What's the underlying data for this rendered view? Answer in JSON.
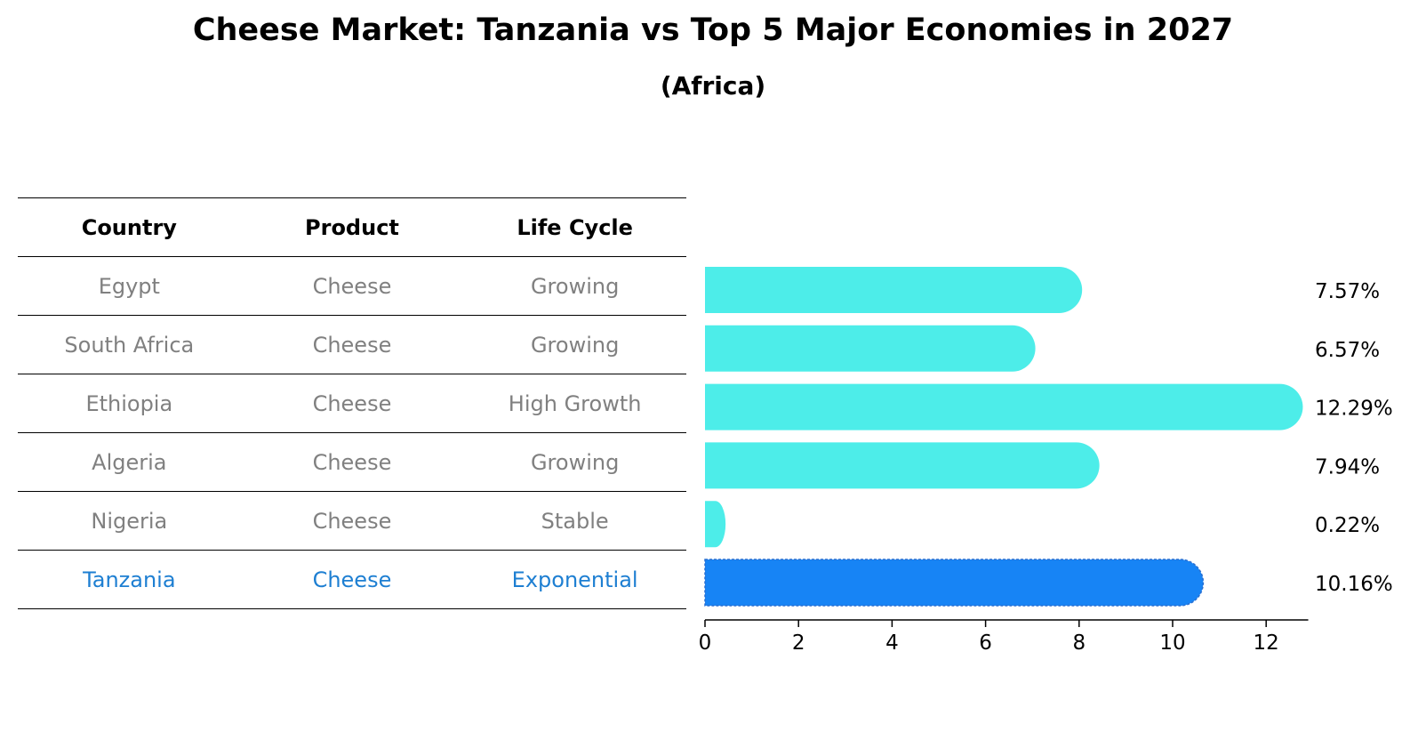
{
  "title": "Cheese Market: Tanzania vs Top 5 Major Economies in 2027",
  "subtitle": "(Africa)",
  "table": {
    "headers": [
      "Country",
      "Product",
      "Life Cycle"
    ],
    "rows": [
      {
        "country": "Egypt",
        "product": "Cheese",
        "life_cycle": "Growing"
      },
      {
        "country": "South Africa",
        "product": "Cheese",
        "life_cycle": "Growing"
      },
      {
        "country": "Ethiopia",
        "product": "Cheese",
        "life_cycle": "High Growth"
      },
      {
        "country": "Algeria",
        "product": "Cheese",
        "life_cycle": "Growing"
      },
      {
        "country": "Nigeria",
        "product": "Cheese",
        "life_cycle": "Stable"
      },
      {
        "country": "Tanzania",
        "product": "Cheese",
        "life_cycle": "Exponential"
      }
    ]
  },
  "colors": {
    "bar": "#4dede9",
    "highlight_bar": "#1784f5",
    "highlight_text": "#1e7fd2",
    "muted_text": "#808080"
  },
  "chart_data": {
    "type": "bar",
    "orientation": "horizontal",
    "title": "Cheese Market: Tanzania vs Top 5 Major Economies in 2027",
    "subtitle": "(Africa)",
    "categories": [
      "Egypt",
      "South Africa",
      "Ethiopia",
      "Algeria",
      "Nigeria",
      "Tanzania"
    ],
    "values": [
      7.57,
      6.57,
      12.29,
      7.94,
      0.22,
      10.16
    ],
    "data_labels": [
      "7.57%",
      "6.57%",
      "12.29%",
      "7.94%",
      "0.22%",
      "10.16%"
    ],
    "highlight": "Tanzania",
    "xlim": [
      0,
      12.9
    ],
    "xticks": [
      0,
      2,
      4,
      6,
      8,
      10,
      12
    ],
    "xlabel": "",
    "ylabel": "",
    "grid": false
  }
}
